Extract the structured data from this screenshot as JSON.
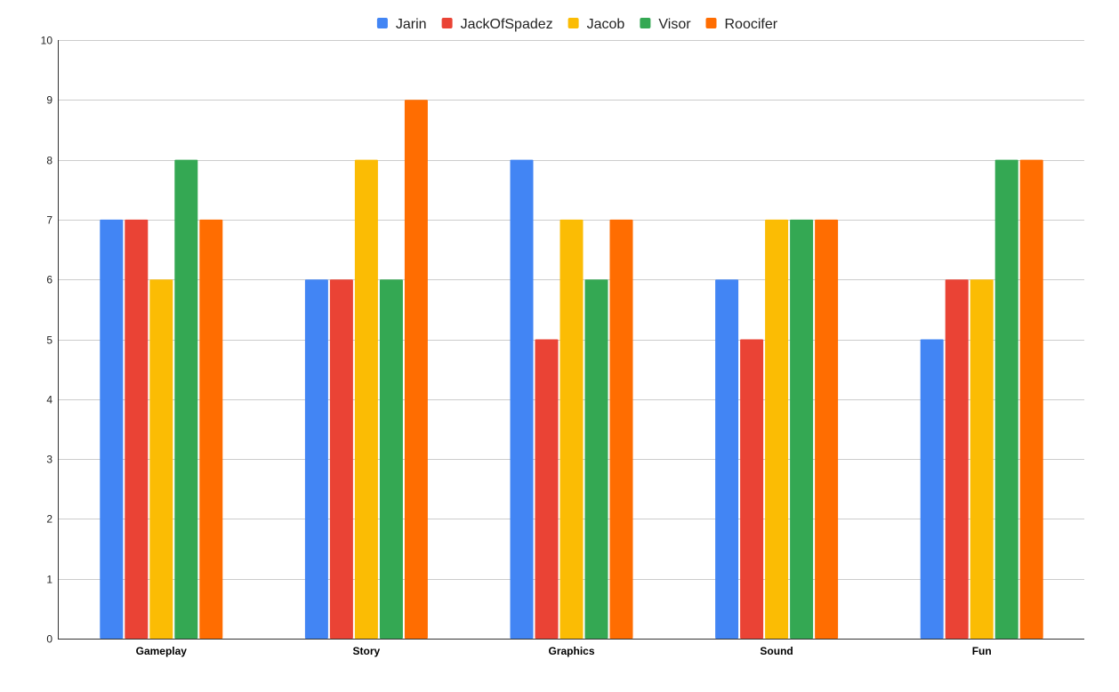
{
  "chart_data": {
    "type": "bar",
    "categories": [
      "Gameplay",
      "Story",
      "Graphics",
      "Sound",
      "Fun"
    ],
    "series": [
      {
        "name": "Jarin",
        "color": "#4285f4",
        "values": [
          7,
          6,
          8,
          6,
          5
        ]
      },
      {
        "name": "JackOfSpadez",
        "color": "#ea4335",
        "values": [
          7,
          6,
          5,
          5,
          6
        ]
      },
      {
        "name": "Jacob",
        "color": "#fbbc04",
        "values": [
          6,
          8,
          7,
          7,
          6
        ]
      },
      {
        "name": "Visor",
        "color": "#34a853",
        "values": [
          8,
          6,
          6,
          7,
          8
        ]
      },
      {
        "name": "Roocifer",
        "color": "#ff6d01",
        "values": [
          7,
          9,
          7,
          7,
          8
        ]
      }
    ],
    "title": "",
    "xlabel": "",
    "ylabel": "",
    "ylim": [
      0,
      10
    ],
    "yticks": [
      "0",
      "1",
      "2",
      "3",
      "4",
      "5",
      "6",
      "7",
      "8",
      "9",
      "10"
    ],
    "grid": true,
    "legend_position": "top-center"
  }
}
